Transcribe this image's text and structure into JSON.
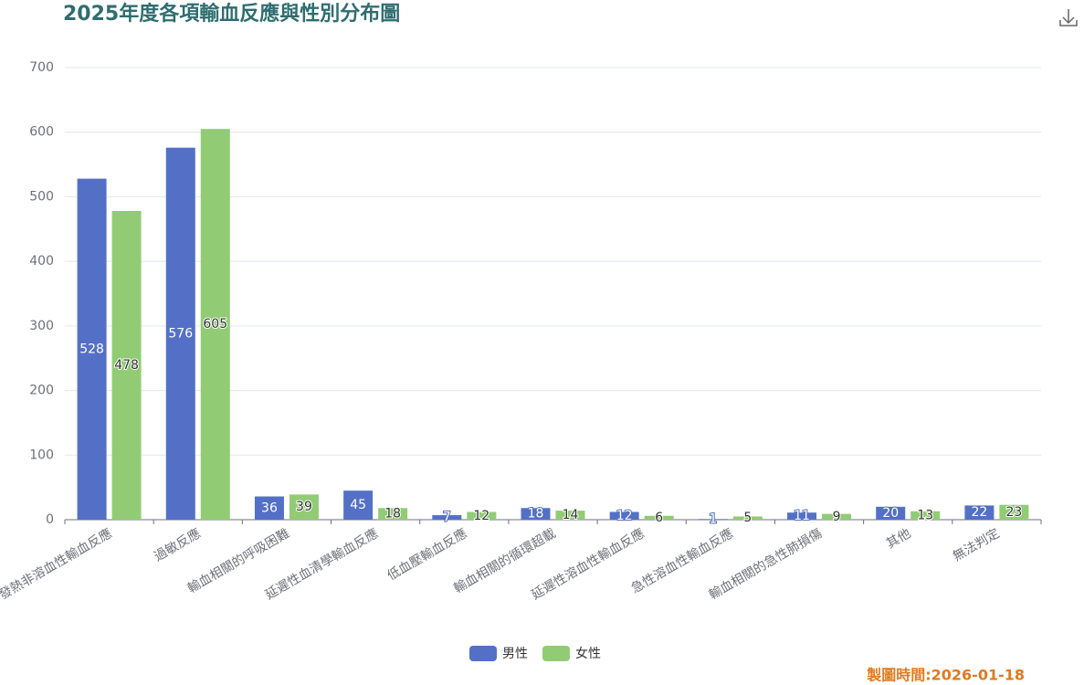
{
  "chart_data": {
    "type": "bar",
    "title": "2025年度各項輸血反應與性別分布圖",
    "categories": [
      "發熱非溶血性輸血反應",
      "過敏反應",
      "輸血相關的呼吸困難",
      "延遲性血清學輸血反應",
      "低血壓輸血反應",
      "輸血相關的循環超載",
      "延遲性溶血性輸血反應",
      "急性溶血性輸血反應",
      "輸血相關的急性肺損傷",
      "其他",
      "無法判定"
    ],
    "series": [
      {
        "name": "男性",
        "color": "#5470c6",
        "values": [
          528,
          576,
          36,
          45,
          7,
          18,
          12,
          1,
          11,
          20,
          22
        ]
      },
      {
        "name": "女性",
        "color": "#91cc75",
        "values": [
          478,
          605,
          39,
          18,
          12,
          14,
          6,
          5,
          9,
          13,
          23
        ]
      }
    ],
    "ylim": [
      0,
      700
    ],
    "yticks": [
      0,
      100,
      200,
      300,
      400,
      500,
      600,
      700
    ],
    "grid": true,
    "legend": "bottom",
    "footer": "製圖時間:2026-01-18"
  }
}
